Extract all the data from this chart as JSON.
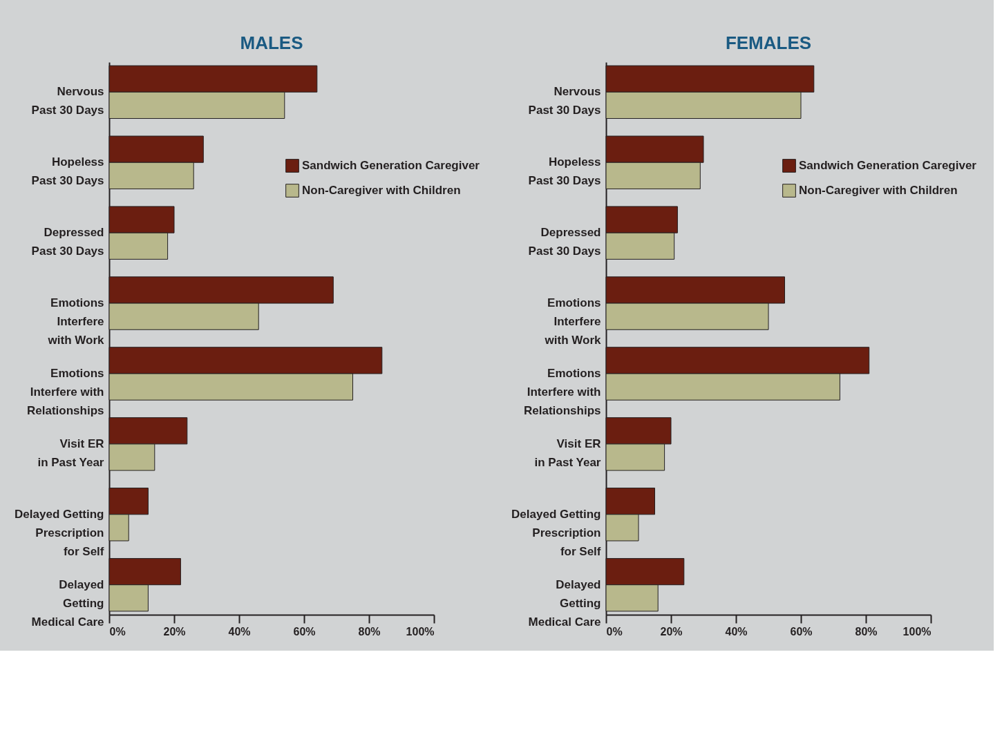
{
  "chart_data": [
    {
      "type": "bar",
      "orientation": "horizontal",
      "title": "MALES",
      "categories": [
        "Nervous\nPast 30 Days",
        "Hopeless\nPast 30 Days",
        "Depressed\nPast 30 Days",
        "Emotions\nInterfere\nwith Work",
        "Emotions\nInterfere with\nRelationships",
        "Visit ER\nin Past Year",
        "Delayed Getting\nPrescription\nfor Self",
        "Delayed\nGetting\nMedical Care"
      ],
      "series": [
        {
          "name": "Sandwich Generation Caregiver",
          "color": "#6b1e10",
          "values": [
            64,
            29,
            20,
            69,
            84,
            24,
            12,
            22
          ]
        },
        {
          "name": "Non-Caregiver with Children",
          "color": "#b8b88c",
          "values": [
            54,
            26,
            18,
            46,
            75,
            14,
            6,
            12
          ]
        }
      ],
      "xlim": [
        0,
        100
      ],
      "xticks": [
        {
          "value": 0,
          "label": "0%"
        },
        {
          "value": 20,
          "label": "20%"
        },
        {
          "value": 40,
          "label": "40%"
        },
        {
          "value": 60,
          "label": "60%"
        },
        {
          "value": 80,
          "label": "80%"
        },
        {
          "value": 100,
          "label": "100%"
        }
      ],
      "grid": false,
      "legend": "top right"
    },
    {
      "type": "bar",
      "orientation": "horizontal",
      "title": "FEMALES",
      "categories": [
        "Nervous\nPast 30 Days",
        "Hopeless\nPast 30 Days",
        "Depressed\nPast 30 Days",
        "Emotions\nInterfere\nwith Work",
        "Emotions\nInterfere with\nRelationships",
        "Visit ER\nin Past Year",
        "Delayed Getting\nPrescription\nfor Self",
        "Delayed\nGetting\nMedical Care"
      ],
      "series": [
        {
          "name": "Sandwich Generation Caregiver",
          "color": "#6b1e10",
          "values": [
            64,
            30,
            22,
            55,
            81,
            20,
            15,
            24
          ]
        },
        {
          "name": "Non-Caregiver with Children",
          "color": "#b8b88c",
          "values": [
            60,
            29,
            21,
            50,
            72,
            18,
            10,
            16
          ]
        }
      ],
      "xlim": [
        0,
        100
      ],
      "xticks": [
        {
          "value": 0,
          "label": "0%"
        },
        {
          "value": 20,
          "label": "20%"
        },
        {
          "value": 40,
          "label": "40%"
        },
        {
          "value": 60,
          "label": "60%"
        },
        {
          "value": 80,
          "label": "80%"
        },
        {
          "value": 100,
          "label": "100%"
        }
      ],
      "grid": false,
      "legend": "top right"
    }
  ]
}
